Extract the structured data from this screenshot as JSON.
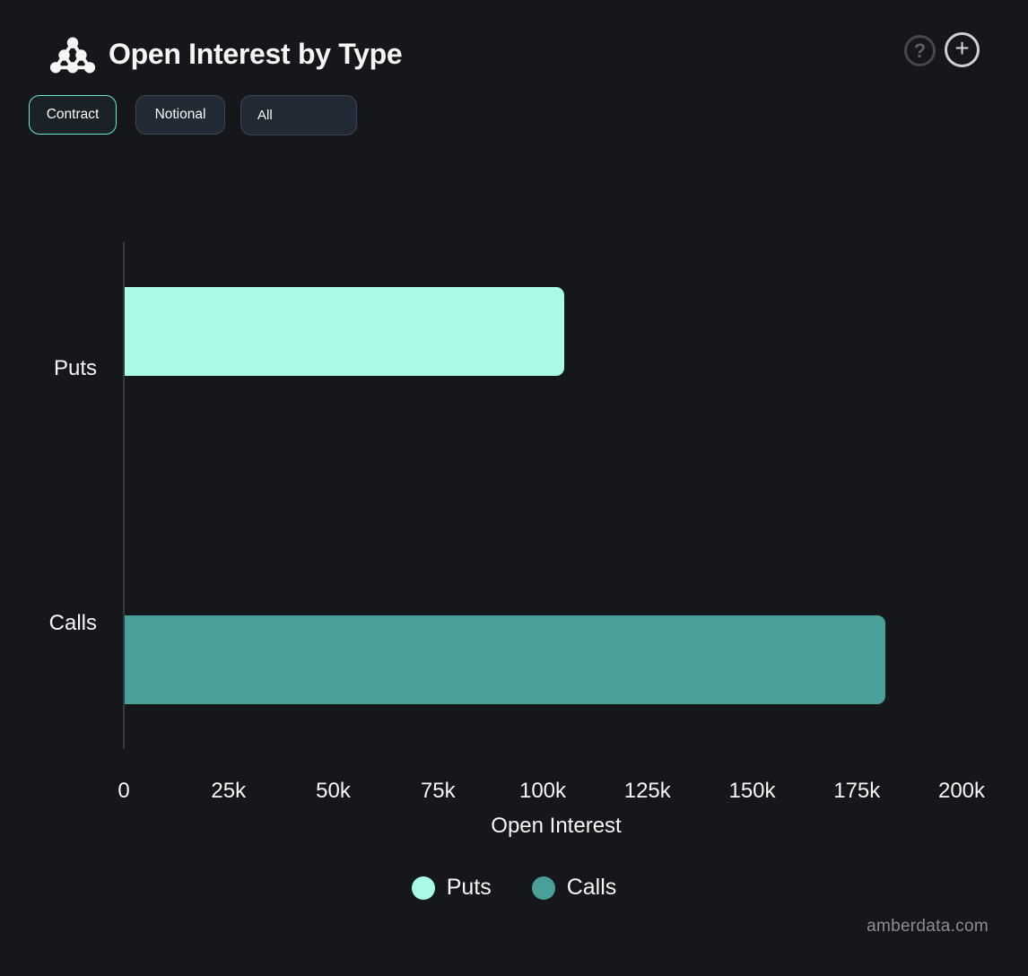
{
  "header": {
    "title": "Open Interest by Type",
    "help_glyph": "?",
    "add_glyph": "+"
  },
  "toolbar": {
    "contract_label": "Contract",
    "notional_label": "Notional",
    "type_filter_value": "All"
  },
  "chart_data": {
    "type": "bar",
    "orientation": "horizontal",
    "title": "Open Interest by Type",
    "categories": [
      "Puts",
      "Calls"
    ],
    "series": [
      {
        "name": "Puts",
        "color": "#a9fae9",
        "values": [
          105000,
          null
        ]
      },
      {
        "name": "Calls",
        "color": "#48a098",
        "values": [
          null,
          181500
        ]
      }
    ],
    "xlabel": "Open Interest",
    "xlim": [
      0,
      200000
    ],
    "xtick_labels": [
      "0",
      "25k",
      "50k",
      "75k",
      "100k",
      "125k",
      "150k",
      "175k",
      "200k"
    ],
    "grid": false,
    "legend_entries": [
      "Puts",
      "Calls"
    ],
    "legend_position": "bottom",
    "background": "#16171a"
  },
  "colors": {
    "background": "#16171a",
    "puts": "#a9fae9",
    "calls": "#48a098",
    "active_button_border": "#6fe9d2",
    "inactive_button_border": "#3d4655",
    "axis_line": "#35393e",
    "watermark_text": "#8b8e94"
  },
  "watermark": "amberdata.com"
}
